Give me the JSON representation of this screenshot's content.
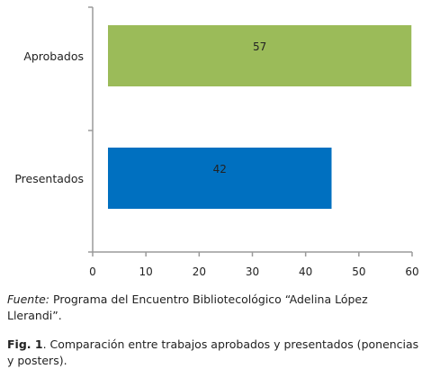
{
  "chart_data": {
    "type": "bar",
    "orientation": "horizontal",
    "categories": [
      "Aprobados",
      "Presentados"
    ],
    "values": [
      57,
      42
    ],
    "data_labels": [
      "57",
      "42"
    ],
    "colors": [
      "#9BBB59",
      "#0070C0"
    ],
    "xlim": [
      0,
      60
    ],
    "xticks": [
      "0",
      "10",
      "20",
      "30",
      "40",
      "50",
      "60"
    ],
    "grid": false,
    "legend": "none"
  },
  "source": {
    "label": "Fuente:",
    "text": "Programa del Encuentro Bibliotecológico “Adelina López Llerandi”."
  },
  "figure": {
    "label": "Fig. 1",
    "text": ". Comparación entre trabajos aprobados y presentados (ponencias y posters)."
  }
}
